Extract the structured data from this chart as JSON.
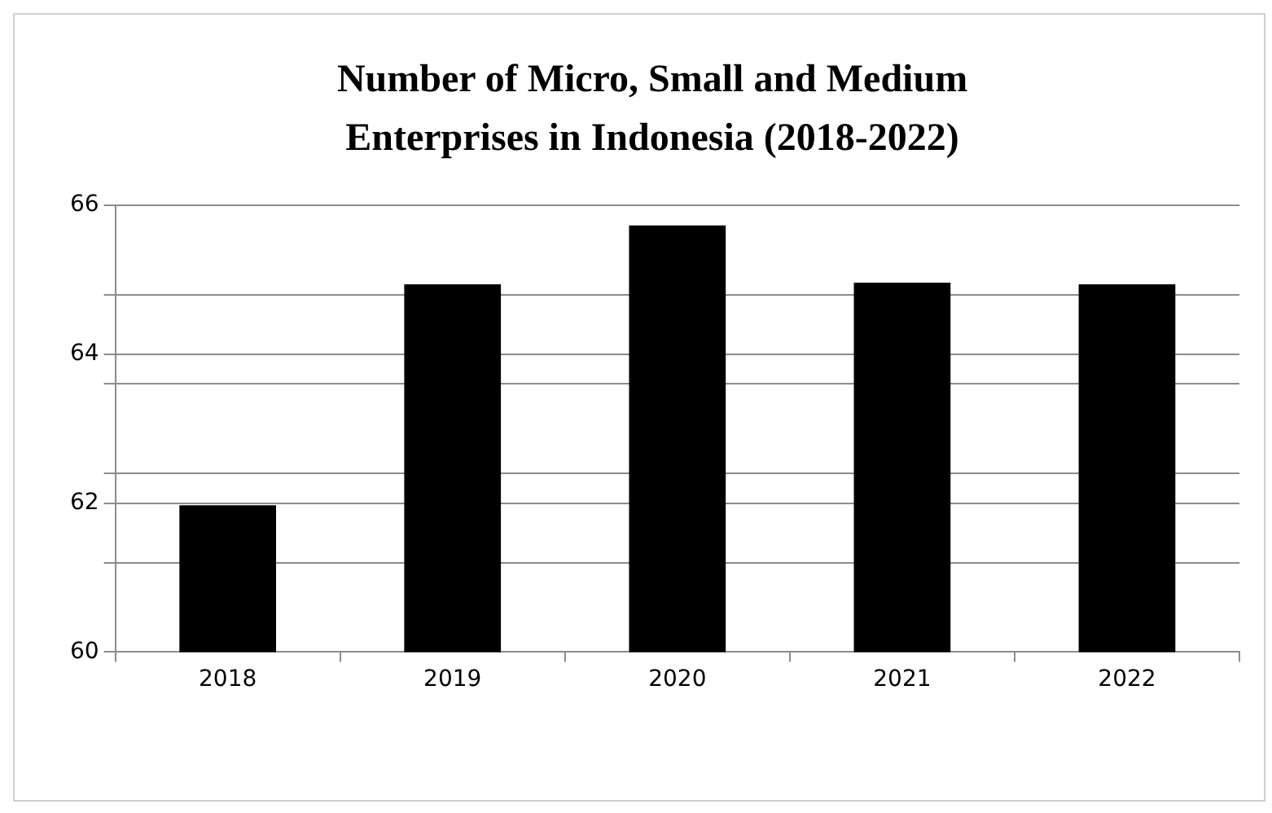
{
  "chart_data": {
    "type": "bar",
    "title": "Number of Micro, Small and Medium Enterprises in Indonesia (2018-2022)",
    "categories": [
      "2018",
      "2019",
      "2020",
      "2021",
      "2022"
    ],
    "values": [
      61.97,
      64.94,
      65.73,
      64.96,
      64.94
    ],
    "color": "#000000",
    "ylim": [
      60,
      66
    ],
    "yticks": [
      60,
      {
        "value": 61.2,
        "label": null
      },
      62,
      {
        "value": 62.4,
        "label": null
      },
      {
        "value": 63.6,
        "label": null
      },
      64,
      {
        "value": 64.8,
        "label": null
      },
      66
    ],
    "grid": "y",
    "legend": false
  }
}
